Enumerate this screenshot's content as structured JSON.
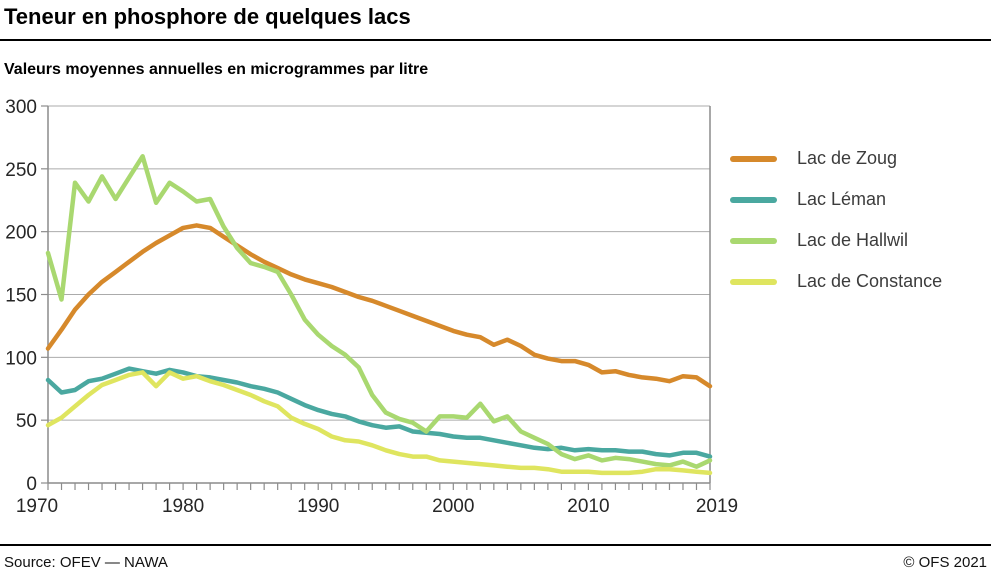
{
  "header": {
    "title": "Teneur en phosphore de quelques lacs",
    "subtitle": "Valeurs moyennes annuelles en microgrammes par litre"
  },
  "footer": {
    "source": "Source: OFEV — NAWA",
    "copyright": "© OFS 2021"
  },
  "colors": {
    "grid": "#ababab",
    "axis": "#8c8c8c",
    "tick_label": "#262626"
  },
  "chart_data": {
    "type": "line",
    "title": "Teneur en phosphore de quelques lacs",
    "subtitle": "Valeurs moyennes annuelles en microgrammes par litre",
    "ylabel": "microgrammes par litre",
    "ylim": [
      0,
      300
    ],
    "yticks": [
      0,
      50,
      100,
      150,
      200,
      250,
      300
    ],
    "xticks_labeled": [
      1970,
      1980,
      1990,
      2000,
      2010,
      2019
    ],
    "grid": true,
    "legend_position": "right",
    "x": [
      1970,
      1971,
      1972,
      1973,
      1974,
      1975,
      1976,
      1977,
      1978,
      1979,
      1980,
      1981,
      1982,
      1983,
      1984,
      1985,
      1986,
      1987,
      1988,
      1989,
      1990,
      1991,
      1992,
      1993,
      1994,
      1995,
      1996,
      1997,
      1998,
      1999,
      2000,
      2001,
      2002,
      2003,
      2004,
      2005,
      2006,
      2007,
      2008,
      2009,
      2010,
      2011,
      2012,
      2013,
      2014,
      2015,
      2016,
      2017,
      2018,
      2019
    ],
    "series": [
      {
        "name": "Lac de Zoug",
        "color": "#d6892b",
        "values": [
          107,
          122,
          138,
          150,
          160,
          168,
          176,
          184,
          191,
          197,
          203,
          205,
          203,
          196,
          189,
          182,
          176,
          171,
          166,
          162,
          159,
          156,
          152,
          148,
          145,
          141,
          137,
          133,
          129,
          125,
          121,
          118,
          116,
          110,
          114,
          109,
          102,
          99,
          97,
          97,
          94,
          88,
          89,
          86,
          84,
          83,
          81,
          85,
          84,
          77
        ]
      },
      {
        "name": "Lac Léman",
        "color": "#4aa8a0",
        "values": [
          82,
          72,
          74,
          81,
          83,
          87,
          91,
          89,
          87,
          90,
          88,
          85,
          84,
          82,
          80,
          77,
          75,
          72,
          67,
          62,
          58,
          55,
          53,
          49,
          46,
          44,
          45,
          41,
          40,
          39,
          37,
          36,
          36,
          34,
          32,
          30,
          28,
          27,
          28,
          26,
          27,
          26,
          26,
          25,
          25,
          23,
          22,
          24,
          24,
          21
        ]
      },
      {
        "name": "Lac de Hallwil",
        "color": "#a9d870",
        "values": [
          183,
          146,
          239,
          224,
          244,
          226,
          243,
          260,
          223,
          239,
          232,
          224,
          226,
          204,
          187,
          175,
          172,
          168,
          150,
          130,
          118,
          109,
          102,
          92,
          70,
          56,
          51,
          48,
          41,
          53,
          53,
          52,
          63,
          49,
          53,
          41,
          36,
          31,
          23,
          19,
          22,
          18,
          20,
          19,
          17,
          15,
          14,
          17,
          13,
          18
        ]
      },
      {
        "name": "Lac de Constance",
        "color": "#dfe55f",
        "values": [
          46,
          52,
          61,
          70,
          78,
          82,
          86,
          88,
          77,
          88,
          83,
          85,
          81,
          78,
          74,
          70,
          65,
          61,
          52,
          47,
          43,
          37,
          34,
          33,
          30,
          26,
          23,
          21,
          21,
          18,
          17,
          16,
          15,
          14,
          13,
          12,
          12,
          11,
          9,
          9,
          9,
          8,
          8,
          8,
          9,
          11,
          11,
          10,
          9,
          8
        ]
      }
    ]
  }
}
